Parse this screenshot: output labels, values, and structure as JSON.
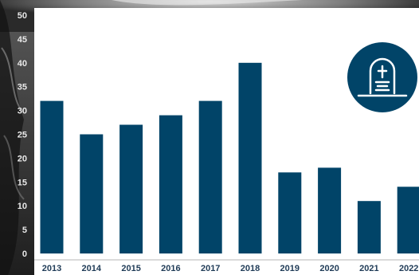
{
  "chart_data": {
    "type": "bar",
    "title": "",
    "xlabel": "",
    "ylabel": "",
    "categories": [
      "2013",
      "2014",
      "2015",
      "2016",
      "2017",
      "2018",
      "2019",
      "2020",
      "2021",
      "2022"
    ],
    "values": [
      32,
      25,
      27,
      29,
      32,
      40,
      17,
      18,
      11,
      14
    ],
    "ylim": [
      0,
      50
    ],
    "yticks": [
      "0",
      "5",
      "10",
      "15",
      "20",
      "25",
      "30",
      "35",
      "40",
      "45",
      "50"
    ],
    "grid": false,
    "legend": "none"
  },
  "colors": {
    "bar": "#014468",
    "tick_text": "#1f3b57",
    "axis_line": "#b5b5b5",
    "badge": "#014468",
    "badge_icon": "#ffffff"
  },
  "icons": {
    "badge": "gravestone-icon"
  }
}
